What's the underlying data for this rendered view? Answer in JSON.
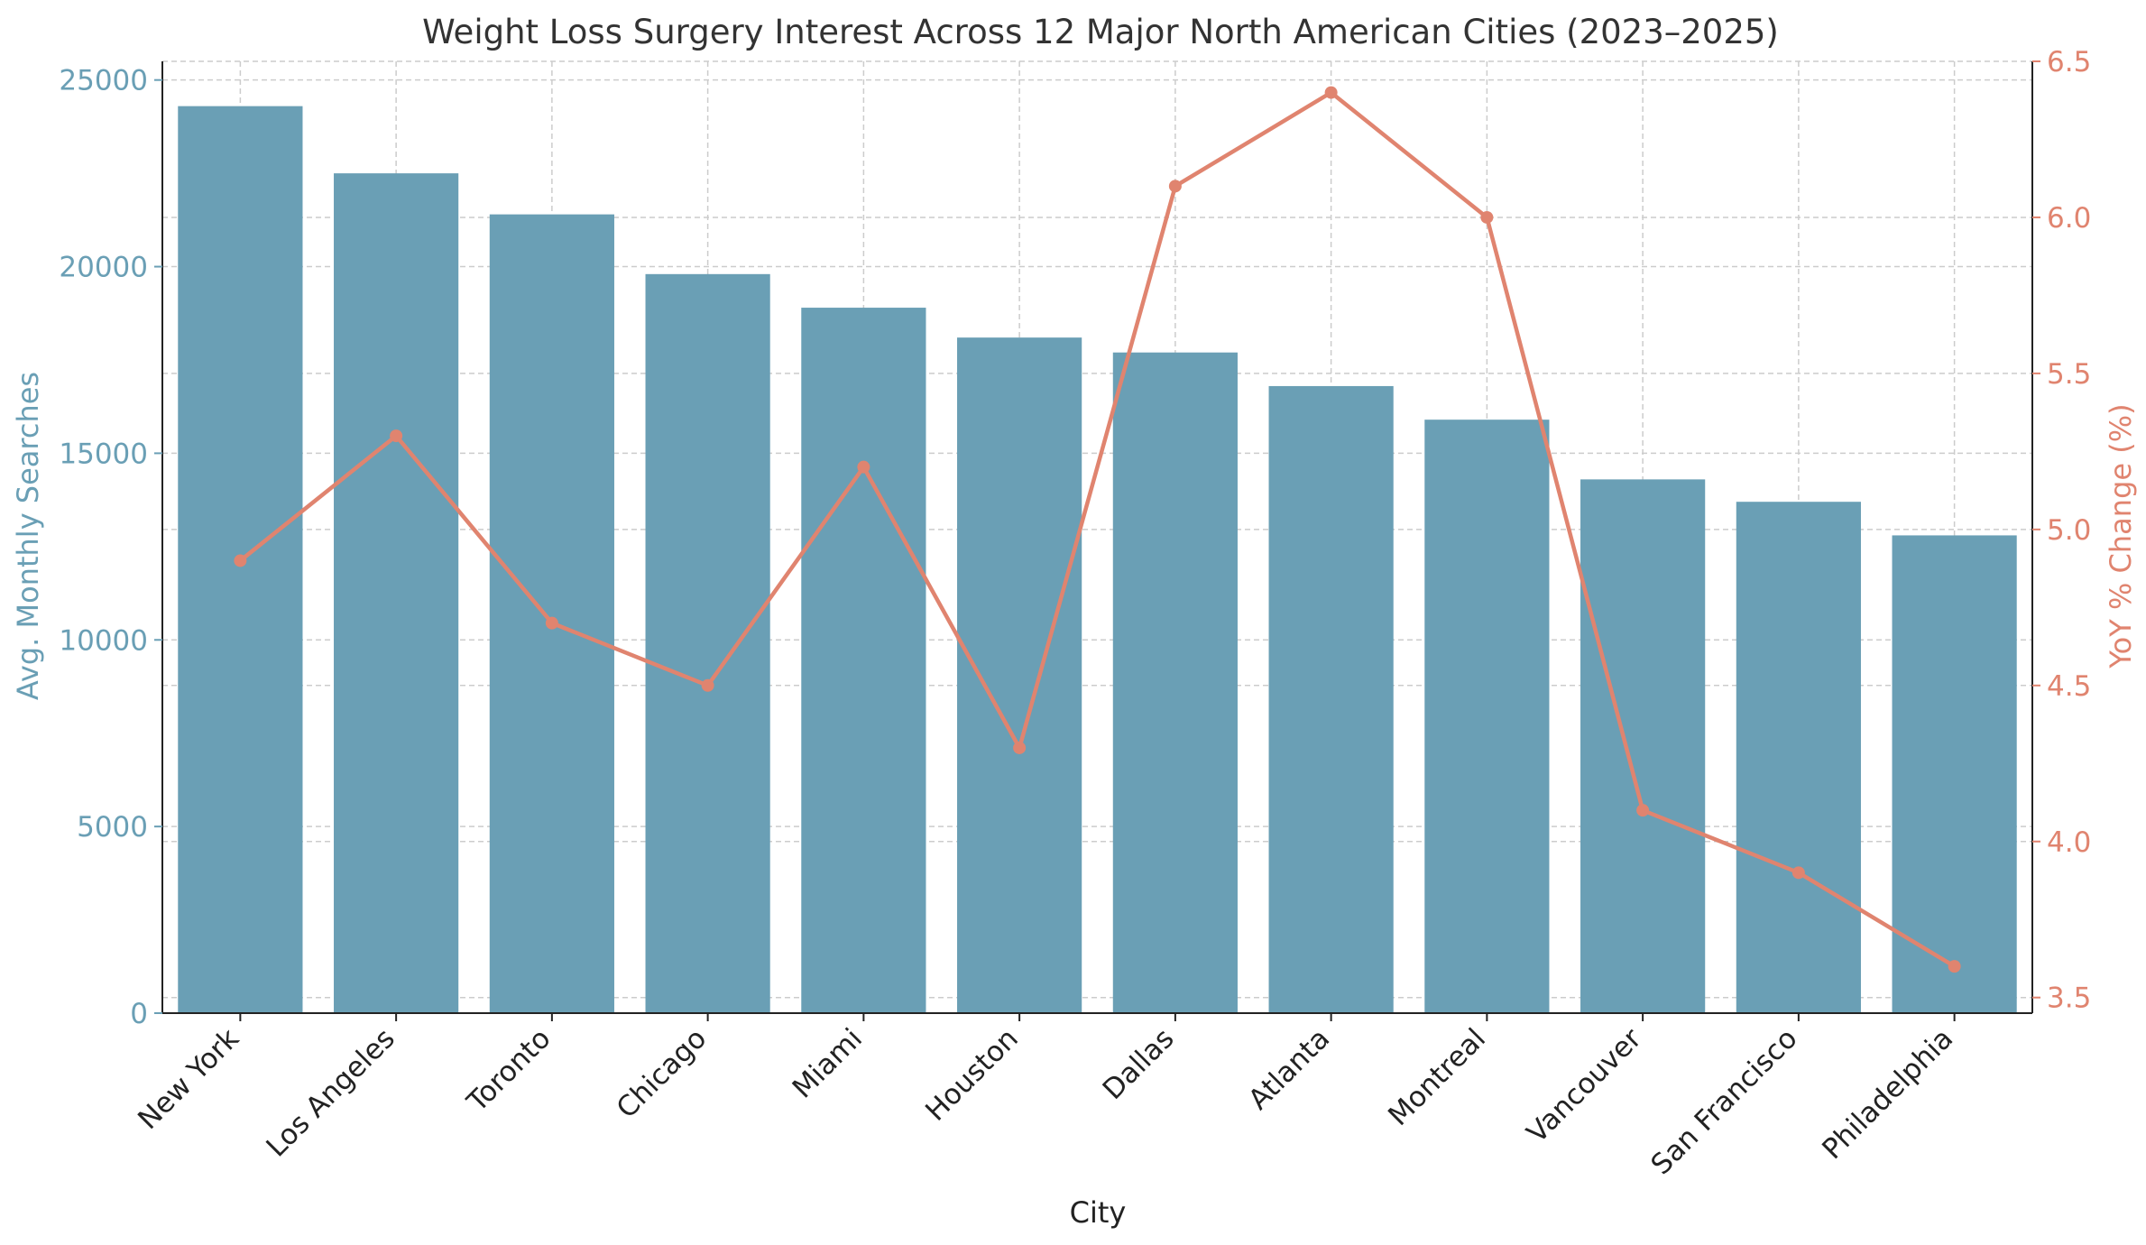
{
  "chart_data": {
    "type": "bar",
    "title": "Weight Loss Surgery Interest Across 12 Major North American Cities (2023–2025)",
    "xlabel": "City",
    "ylabel": "Avg. Monthly Searches",
    "y2label": "YoY % Change (%)",
    "categories": [
      "New York",
      "Los Angeles",
      "Toronto",
      "Chicago",
      "Miami",
      "Houston",
      "Dallas",
      "Atlanta",
      "Montreal",
      "Vancouver",
      "San Francisco",
      "Philadelphia"
    ],
    "ylim": [
      0,
      25500
    ],
    "y2lim": [
      3.45,
      6.5
    ],
    "yticks": [
      "0",
      "5000",
      "10000",
      "15000",
      "20000",
      "25000"
    ],
    "y2ticks": [
      "3.5",
      "4.0",
      "4.5",
      "5.0",
      "5.5",
      "6.0",
      "6.5"
    ],
    "grid": true,
    "series": [
      {
        "name": "Avg. Monthly Searches",
        "type": "bar",
        "axis": "left",
        "color": "#6a9fb5",
        "values": [
          24300,
          22500,
          21400,
          19800,
          18900,
          18100,
          17700,
          16800,
          15900,
          14300,
          13700,
          12800
        ]
      },
      {
        "name": "YoY % Change (%)",
        "type": "line",
        "axis": "right",
        "color": "#e0846f",
        "values": [
          4.9,
          5.3,
          4.7,
          4.5,
          5.2,
          4.3,
          6.1,
          6.4,
          6.0,
          4.1,
          3.9,
          3.6
        ]
      }
    ]
  }
}
